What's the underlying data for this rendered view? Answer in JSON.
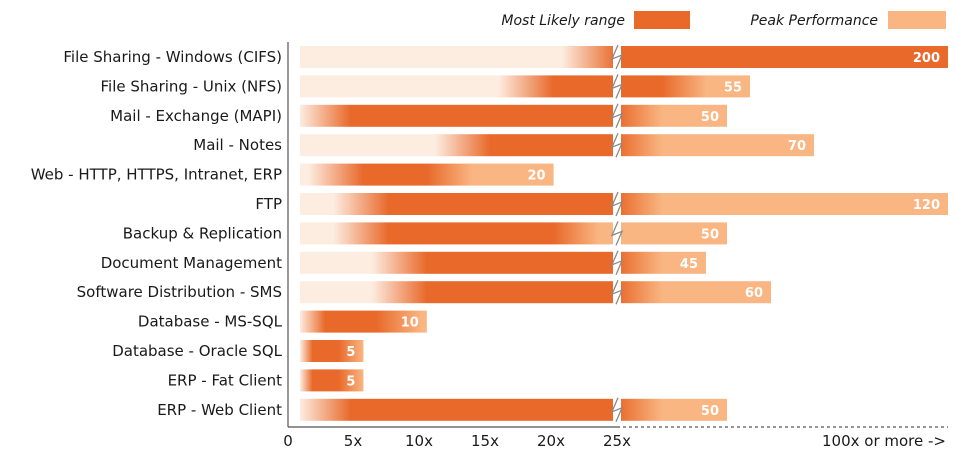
{
  "chart_data": {
    "type": "bar",
    "orientation": "horizontal",
    "legend": {
      "placement": "top-right",
      "entries": [
        {
          "label": "Most Likely range",
          "color": "#e8692a"
        },
        {
          "label": "Peak Performance",
          "color": "#f9b582"
        }
      ]
    },
    "colors": {
      "most_likely": "#e8692a",
      "peak": "#f9b582",
      "fade_start": "#fdece0"
    },
    "x_ticks": [
      "0",
      "5x",
      "10x",
      "15x",
      "20x",
      "25x",
      "100x or more ->"
    ],
    "axis_break_at": 25,
    "categories": [
      "File Sharing - Windows (CIFS)",
      "File Sharing - Unix (NFS)",
      "Mail - Exchange (MAPI)",
      "Mail - Notes",
      "Web - HTTP, HTTPS, Intranet, ERP",
      "FTP",
      "Backup & Replication",
      "Document Management",
      "Software Distribution - SMS",
      "Database - MS-SQL",
      "Database - Oracle SQL",
      "ERP - Fat Client",
      "ERP - Web Client"
    ],
    "series": [
      {
        "name": "Most Likely range",
        "ranges": [
          [
            25,
            200
          ],
          [
            20,
            35
          ],
          [
            4,
            25
          ],
          [
            15,
            25
          ],
          [
            5,
            10
          ],
          [
            7,
            25
          ],
          [
            7,
            20
          ],
          [
            10,
            25
          ],
          [
            10,
            25
          ],
          [
            2,
            6
          ],
          [
            1,
            3
          ],
          [
            1,
            3
          ],
          [
            4,
            25
          ]
        ]
      },
      {
        "name": "Peak Performance",
        "values": [
          200,
          55,
          50,
          70,
          20,
          120,
          50,
          45,
          60,
          10,
          5,
          5,
          50
        ],
        "labels": [
          "200",
          "55",
          "50",
          "70",
          "20",
          "120",
          "50",
          "45",
          "60",
          "10",
          "5",
          "5",
          "50"
        ]
      }
    ]
  }
}
